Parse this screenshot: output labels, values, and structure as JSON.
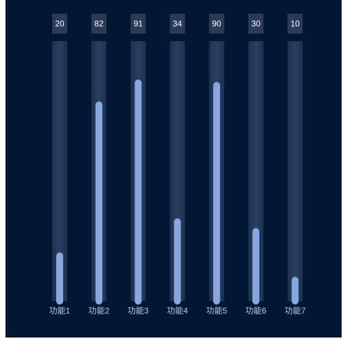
{
  "chart_data": {
    "type": "bar",
    "categories": [
      "功能1",
      "功能2",
      "功能3",
      "功能4",
      "功能5",
      "功能6",
      "功能7"
    ],
    "values": [
      20,
      82,
      91,
      34,
      90,
      30,
      10
    ],
    "ylim": [
      0,
      100
    ],
    "grid": false,
    "title": "",
    "xlabel": "",
    "ylabel": ""
  },
  "colors": {
    "background": "#001834",
    "track": "#25395a",
    "bar": "#87a7df",
    "label_box": "#2a3b58",
    "value_text": "#ffffff",
    "category_text": "#b8ccf0"
  }
}
